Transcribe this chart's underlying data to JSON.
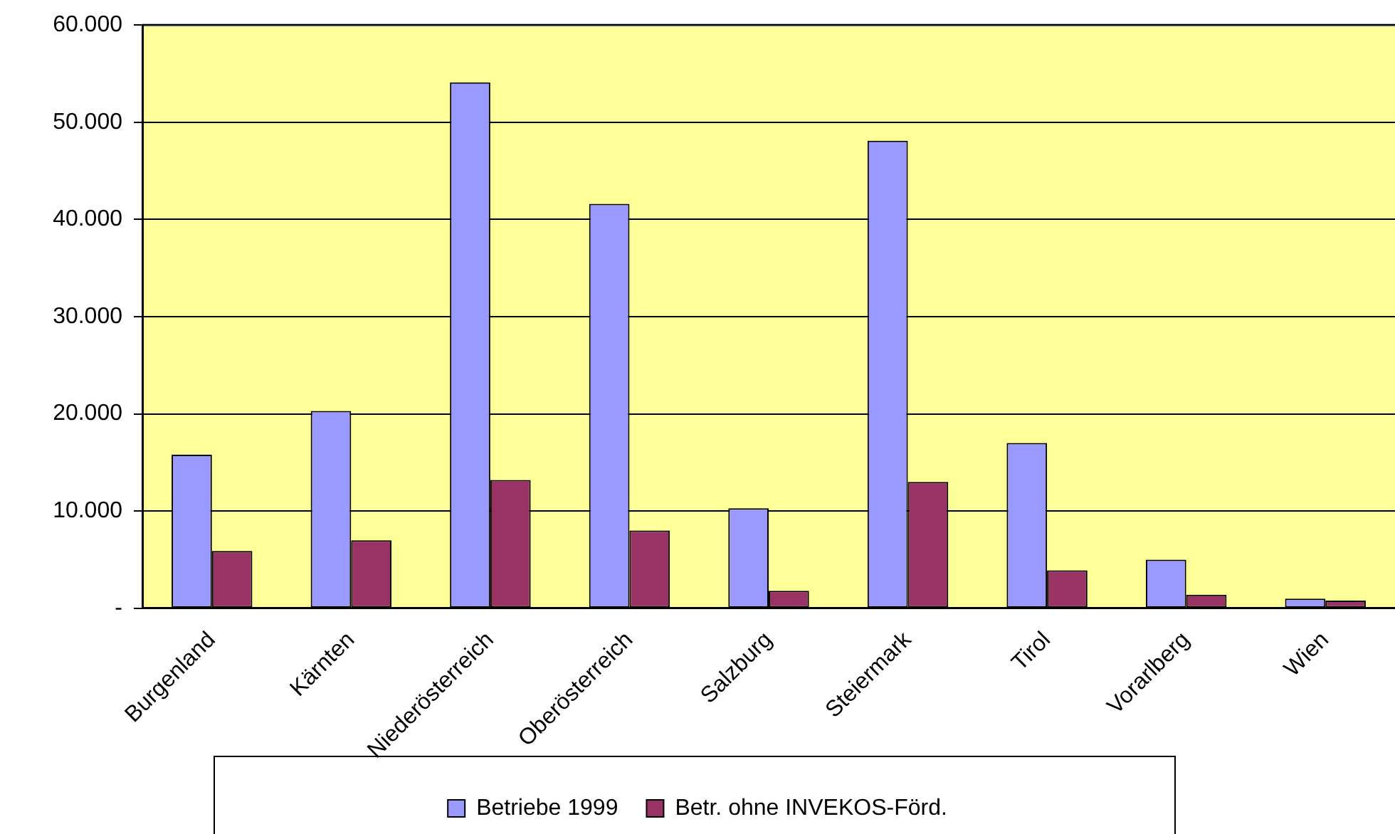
{
  "chart_data": {
    "type": "bar",
    "categories": [
      "Burgenland",
      "Kärnten",
      "Niederösterreich",
      "Oberösterreich",
      "Salzburg",
      "Steiermark",
      "Tirol",
      "Vorarlberg",
      "Wien"
    ],
    "series": [
      {
        "name": "Betriebe 1999",
        "color": "#9999ff",
        "values": [
          15800,
          20300,
          54100,
          41600,
          10300,
          48100,
          17000,
          5000,
          1000
        ]
      },
      {
        "name": "Betr. ohne INVEKOS-Förd.",
        "color": "#993366",
        "values": [
          5900,
          7000,
          13200,
          8000,
          1800,
          13000,
          3900,
          1400,
          800
        ]
      }
    ],
    "ylim": [
      0,
      60000
    ],
    "yticks": [
      {
        "value": 0,
        "label": "-"
      },
      {
        "value": 10000,
        "label": "10.000"
      },
      {
        "value": 20000,
        "label": "20.000"
      },
      {
        "value": 30000,
        "label": "30.000"
      },
      {
        "value": 40000,
        "label": "40.000"
      },
      {
        "value": 50000,
        "label": "50.000"
      },
      {
        "value": 60000,
        "label": "60.000"
      }
    ],
    "grid": "y",
    "legend": "bottom"
  }
}
